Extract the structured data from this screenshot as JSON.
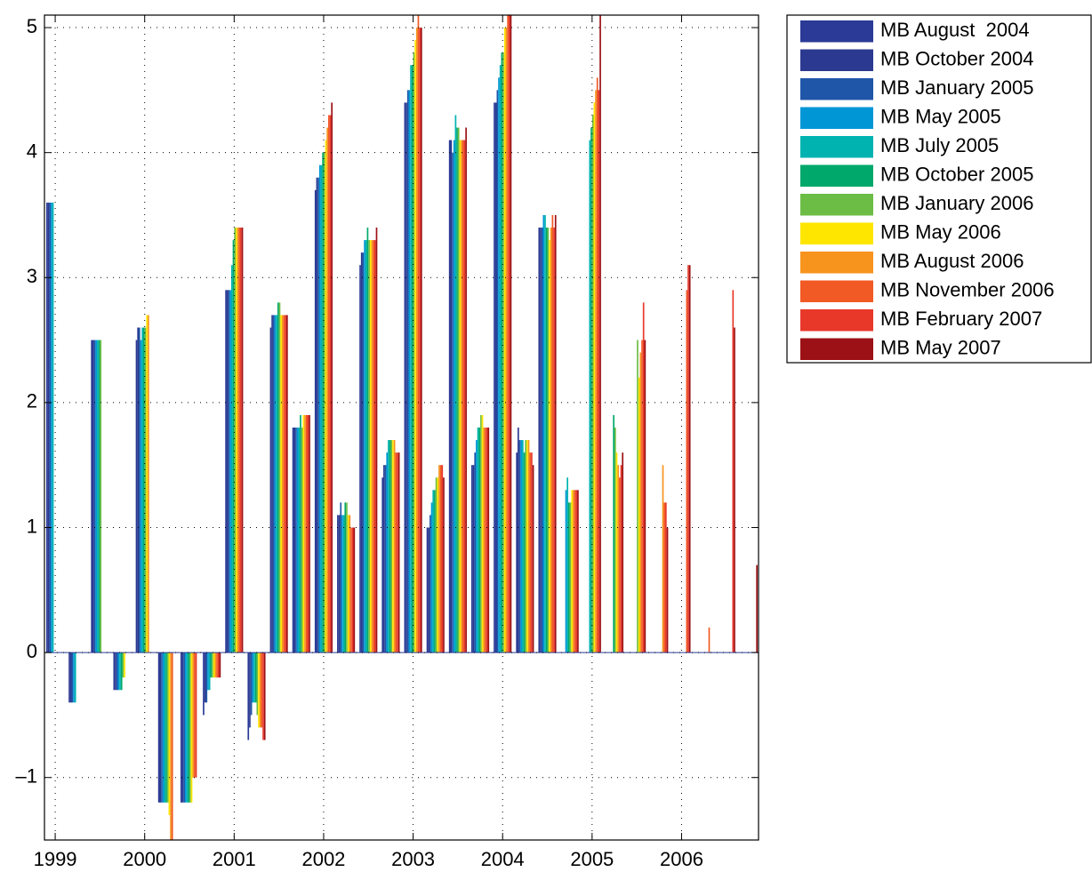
{
  "chart_data": {
    "type": "bar",
    "x": [
      1999,
      1999.25,
      1999.5,
      1999.75,
      2000,
      2000.25,
      2000.5,
      2000.75,
      2001,
      2001.25,
      2001.5,
      2001.75,
      2002,
      2002.25,
      2002.5,
      2002.75,
      2003,
      2003.25,
      2003.5,
      2003.75,
      2004,
      2004.25,
      2004.5,
      2004.75,
      2005,
      2005.25,
      2005.5,
      2005.75,
      2006,
      2006.25,
      2006.5,
      2006.75
    ],
    "xlim": [
      1998.88,
      2006.86
    ],
    "xticks": [
      1999,
      2000,
      2001,
      2002,
      2003,
      2004,
      2005,
      2006
    ],
    "ylim": [
      -1.5,
      5.1
    ],
    "yticks": [
      {
        "value": -1,
        "label": "–1"
      },
      0,
      1,
      2,
      3,
      4,
      5
    ],
    "grid": true,
    "legend": "outside-right",
    "series": [
      {
        "name": "MB August  2004",
        "color": "#2a3a96",
        "values": [
          3.6,
          -0.4,
          2.5,
          -0.3,
          2.5,
          -1.2,
          -1.2,
          -0.5,
          2.9,
          -0.7,
          2.6,
          1.8,
          3.7,
          1.1,
          3.1,
          1.4,
          4.4,
          1.0,
          4.1,
          1.5,
          4.4,
          1.6,
          3.4,
          null,
          null,
          null,
          null,
          null,
          null,
          null,
          null,
          null
        ]
      },
      {
        "name": "MB October 2004",
        "color": "#2b3990",
        "values": [
          3.6,
          -0.4,
          2.5,
          -0.3,
          2.6,
          -1.2,
          -1.2,
          -0.4,
          2.9,
          -0.6,
          2.7,
          1.8,
          3.8,
          1.1,
          3.2,
          1.5,
          4.4,
          1.0,
          4.1,
          1.5,
          4.4,
          1.8,
          3.4,
          null,
          null,
          null,
          null,
          null,
          null,
          null,
          null,
          null
        ]
      },
      {
        "name": "MB January 2005",
        "color": "#1f56a8",
        "values": [
          3.6,
          -0.4,
          2.5,
          -0.3,
          2.6,
          -1.2,
          -1.2,
          -0.4,
          2.9,
          -0.5,
          2.7,
          1.8,
          3.8,
          1.2,
          3.2,
          1.5,
          4.5,
          1.1,
          4.0,
          1.6,
          4.5,
          1.7,
          3.4,
          null,
          null,
          null,
          null,
          null,
          null,
          null,
          null,
          null
        ]
      },
      {
        "name": "MB May 2005",
        "color": "#0096d6",
        "values": [
          3.6,
          -0.4,
          2.5,
          -0.3,
          2.5,
          -1.2,
          -1.2,
          -0.3,
          2.9,
          -0.4,
          2.7,
          1.8,
          3.9,
          1.1,
          3.3,
          1.6,
          4.5,
          1.2,
          4.1,
          1.7,
          4.6,
          1.7,
          3.5,
          1.3,
          null,
          null,
          null,
          null,
          null,
          null,
          null,
          null
        ]
      },
      {
        "name": "MB July 2005",
        "color": "#00b3b0",
        "values": [
          3.6,
          -0.4,
          2.5,
          -0.3,
          2.6,
          -1.2,
          -1.2,
          -0.3,
          3.1,
          -0.4,
          2.7,
          1.8,
          3.9,
          1.1,
          3.3,
          1.7,
          4.7,
          1.3,
          4.3,
          1.8,
          4.7,
          1.7,
          3.5,
          1.4,
          4.1,
          null,
          null,
          null,
          null,
          null,
          null,
          null
        ]
      },
      {
        "name": "MB October 2005",
        "color": "#00a86b",
        "values": [
          null,
          null,
          2.5,
          -0.3,
          2.6,
          -1.2,
          -1.2,
          -0.2,
          3.3,
          -0.4,
          2.8,
          1.9,
          4.0,
          1.2,
          3.4,
          1.7,
          4.7,
          1.3,
          4.2,
          1.8,
          4.8,
          1.6,
          3.4,
          1.2,
          4.2,
          1.9,
          null,
          null,
          null,
          null,
          null,
          null
        ]
      },
      {
        "name": "MB January 2006",
        "color": "#6cbd45",
        "values": [
          null,
          null,
          2.5,
          -0.2,
          2.6,
          -1.2,
          -1.2,
          -0.2,
          3.4,
          -0.5,
          2.8,
          1.8,
          4.0,
          1.2,
          3.3,
          1.7,
          4.8,
          1.4,
          4.2,
          1.9,
          4.8,
          1.7,
          3.4,
          1.2,
          4.3,
          1.8,
          2.5,
          null,
          null,
          null,
          null,
          null
        ]
      },
      {
        "name": "MB May 2006",
        "color": "#ffe600",
        "values": [
          null,
          null,
          null,
          -0.2,
          2.7,
          -1.3,
          -1.2,
          -0.2,
          3.4,
          -0.6,
          2.7,
          1.9,
          4.1,
          1.1,
          3.3,
          1.7,
          4.9,
          1.4,
          4.1,
          1.9,
          5.0,
          1.7,
          3.3,
          1.3,
          4.4,
          1.6,
          2.2,
          null,
          null,
          null,
          null,
          null
        ]
      },
      {
        "name": "MB August 2006",
        "color": "#f7941d",
        "values": [
          null,
          null,
          null,
          null,
          2.7,
          -1.5,
          -1.0,
          -0.2,
          3.4,
          -0.6,
          2.7,
          1.9,
          4.2,
          1.1,
          3.3,
          1.7,
          5.0,
          1.5,
          4.1,
          1.8,
          5.0,
          1.7,
          3.4,
          1.3,
          4.5,
          1.5,
          2.4,
          1.5,
          null,
          null,
          null,
          null
        ]
      },
      {
        "name": "MB November 2006",
        "color": "#f15a24",
        "values": [
          null,
          null,
          null,
          null,
          null,
          -1.5,
          -1.0,
          -0.2,
          3.4,
          -0.6,
          2.7,
          1.9,
          4.3,
          1.0,
          3.3,
          1.6,
          5.1,
          1.5,
          4.1,
          1.8,
          5.1,
          1.6,
          3.5,
          1.3,
          4.6,
          1.4,
          2.5,
          1.2,
          2.9,
          0.2,
          null,
          null
        ]
      },
      {
        "name": "MB February 2007",
        "color": "#e8382a",
        "values": [
          null,
          null,
          null,
          null,
          null,
          null,
          -1.0,
          -0.2,
          3.4,
          -0.7,
          2.7,
          1.9,
          4.3,
          1.0,
          3.3,
          1.6,
          5.0,
          1.5,
          4.1,
          1.8,
          5.1,
          1.6,
          3.4,
          1.3,
          4.5,
          1.5,
          2.8,
          1.2,
          3.1,
          0,
          2.9,
          null
        ]
      },
      {
        "name": "MB May 2007",
        "color": "#9b1115",
        "values": [
          null,
          null,
          null,
          null,
          null,
          null,
          null,
          -0.2,
          3.4,
          -0.7,
          2.7,
          1.9,
          4.4,
          1.0,
          3.4,
          1.6,
          5.0,
          1.4,
          4.2,
          1.8,
          5.1,
          1.5,
          3.5,
          1.3,
          5.1,
          1.6,
          2.5,
          1.0,
          3.1,
          0,
          2.6,
          0.7
        ]
      }
    ]
  }
}
